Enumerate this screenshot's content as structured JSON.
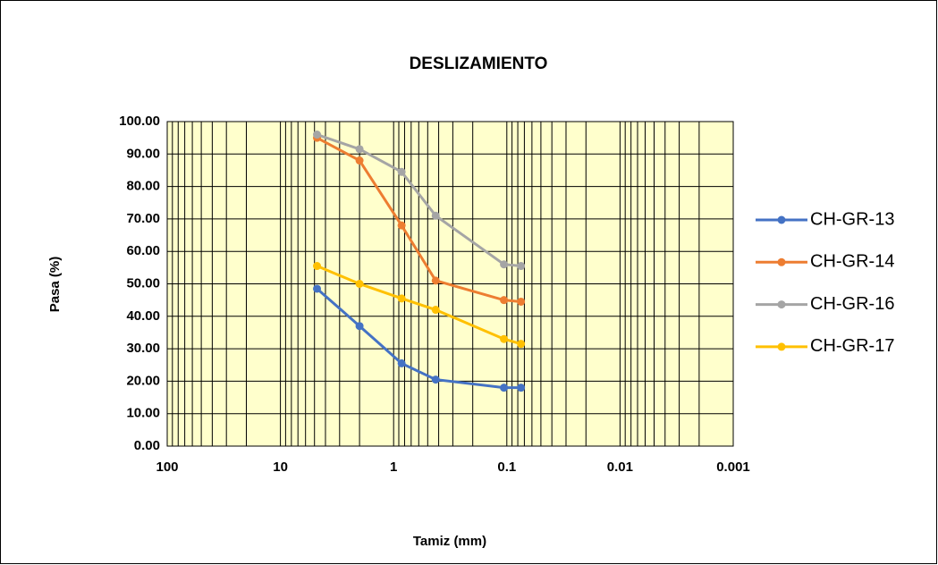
{
  "chart_data": {
    "type": "line",
    "title": "DESLIZAMIENTO",
    "xlabel": "Tamiz (mm)",
    "ylabel": "Pasa (%)",
    "x": [
      4.75,
      2,
      0.85,
      0.425,
      0.106,
      0.075
    ],
    "series": [
      {
        "name": "CH-GR-13",
        "color": "#4472c4",
        "values": [
          48.5,
          37,
          25.5,
          20.5,
          18,
          18
        ]
      },
      {
        "name": "CH-GR-14",
        "color": "#ed7d31",
        "values": [
          95,
          88,
          68,
          51,
          45,
          44.5
        ]
      },
      {
        "name": "CH-GR-16",
        "color": "#a5a5a5",
        "values": [
          96,
          91.5,
          84.5,
          71,
          56,
          55.5
        ]
      },
      {
        "name": "CH-GR-17",
        "color": "#ffc000",
        "values": [
          55.5,
          50,
          45.5,
          42,
          33,
          31.5
        ]
      }
    ],
    "xlim": [
      100,
      0.001
    ],
    "xlog": true,
    "xticks": [
      100,
      10,
      1,
      0.1,
      0.01,
      0.001
    ],
    "ylim": [
      0,
      100
    ],
    "yticks": [
      {
        "value": 0,
        "label": "0.00"
      },
      {
        "value": 10,
        "label": "10.00"
      },
      {
        "value": 20,
        "label": "20.00"
      },
      {
        "value": 30,
        "label": "30.00"
      },
      {
        "value": 40,
        "label": "40.00"
      },
      {
        "value": 50,
        "label": "50.00"
      },
      {
        "value": 60,
        "label": "60.00"
      },
      {
        "value": 70,
        "label": "70.00"
      },
      {
        "value": 80,
        "label": "80.00"
      },
      {
        "value": 90,
        "label": "90.00"
      },
      {
        "value": 100,
        "label": "100.00"
      }
    ],
    "grid": true,
    "legend": "right"
  }
}
